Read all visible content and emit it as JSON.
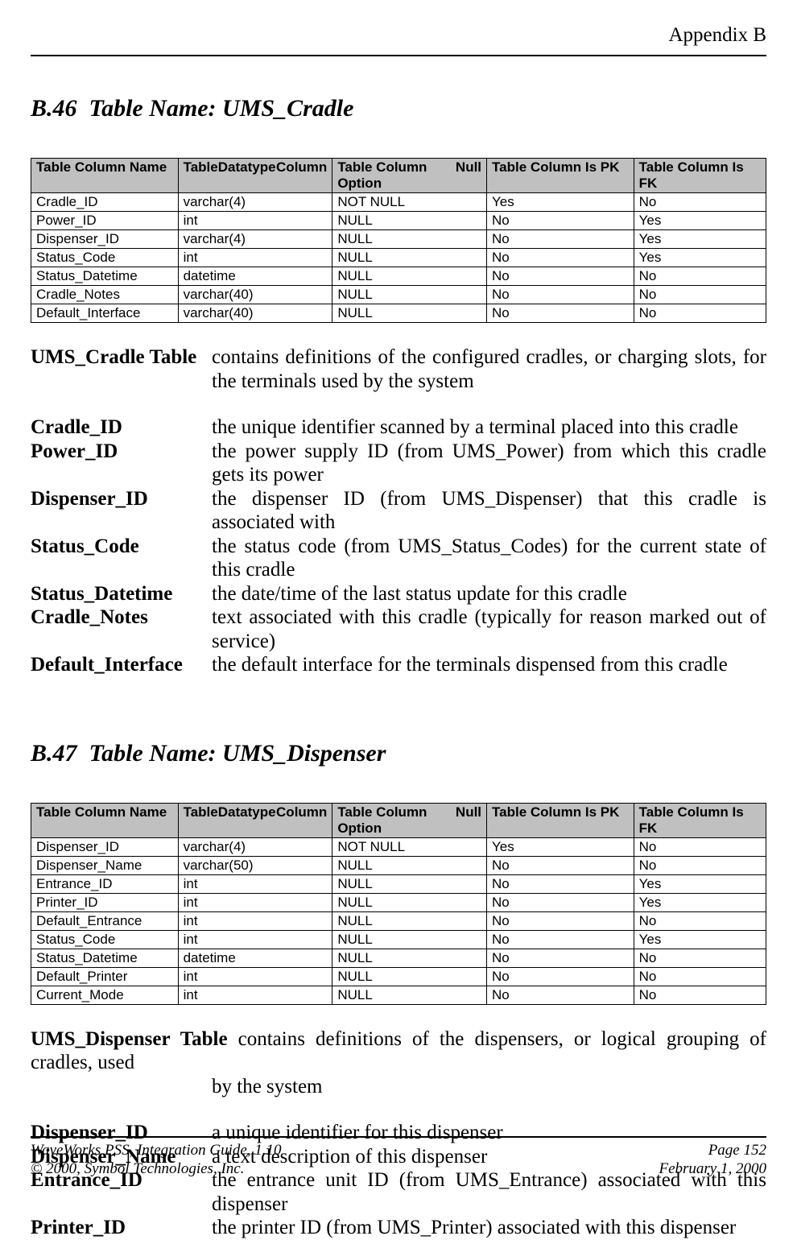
{
  "header": {
    "appendix": "Appendix B"
  },
  "section1": {
    "number": "B.46",
    "title": "Table Name: UMS_Cradle",
    "columns": [
      {
        "left": "Table Column Name",
        "right": ""
      },
      {
        "left": "Table",
        "right": "Column",
        "sub": "Datatype"
      },
      {
        "left": "Table   Column",
        "right": "Null",
        "sub": "Option"
      },
      {
        "left": "Table Column Is PK",
        "right": ""
      },
      {
        "left": "Table Column Is FK",
        "right": ""
      }
    ],
    "rows": [
      [
        "Cradle_ID",
        "varchar(4)",
        "NOT NULL",
        "Yes",
        "No"
      ],
      [
        "Power_ID",
        "int",
        "NULL",
        "No",
        "Yes"
      ],
      [
        "Dispenser_ID",
        "varchar(4)",
        "NULL",
        "No",
        "Yes"
      ],
      [
        "Status_Code",
        "int",
        "NULL",
        "No",
        "Yes"
      ],
      [
        "Status_Datetime",
        "datetime",
        "NULL",
        "No",
        "No"
      ],
      [
        "Cradle_Notes",
        "varchar(40)",
        "NULL",
        "No",
        "No"
      ],
      [
        "Default_Interface",
        "varchar(40)",
        "NULL",
        "No",
        "No"
      ]
    ],
    "defs": [
      {
        "term": "UMS_Cradle Table",
        "desc": "contains definitions of the configured cradles, or charging slots, for the terminals used by the system"
      },
      {
        "spacer": true
      },
      {
        "term": "Cradle_ID",
        "desc": "the unique identifier scanned by a terminal placed into this cradle"
      },
      {
        "term": "Power_ID",
        "desc": "the power supply ID (from UMS_Power) from which this cradle gets its power"
      },
      {
        "term": "Dispenser_ID",
        "desc": "the dispenser ID (from UMS_Dispenser) that this cradle is associated with"
      },
      {
        "term": "Status_Code",
        "desc": "the status code (from UMS_Status_Codes) for the current state of this cradle"
      },
      {
        "term": "Status_Datetime",
        "desc": "the date/time of the last status update for this cradle"
      },
      {
        "term": "Cradle_Notes",
        "desc": "text associated with this cradle (typically for reason marked out of service)"
      },
      {
        "term": "Default_Interface",
        "desc": "the default interface for the terminals dispensed from this cradle"
      }
    ]
  },
  "section2": {
    "number": "B.47",
    "title": "Table Name: UMS_Dispenser",
    "columns": [
      {
        "left": "Table Column Name",
        "right": ""
      },
      {
        "left": "Table",
        "right": "Column",
        "sub": "Datatype"
      },
      {
        "left": "Table   Column",
        "right": "Null",
        "sub": "Option"
      },
      {
        "left": "Table Column Is PK",
        "right": ""
      },
      {
        "left": "Table Column Is FK",
        "right": ""
      }
    ],
    "rows": [
      [
        "Dispenser_ID",
        "varchar(4)",
        "NOT NULL",
        "Yes",
        "No"
      ],
      [
        "Dispenser_Name",
        "varchar(50)",
        "NULL",
        "No",
        "No"
      ],
      [
        "Entrance_ID",
        "int",
        "NULL",
        "No",
        "Yes"
      ],
      [
        "Printer_ID",
        "int",
        "NULL",
        "No",
        "Yes"
      ],
      [
        "Default_Entrance",
        "int",
        "NULL",
        "No",
        "No"
      ],
      [
        "Status_Code",
        "int",
        "NULL",
        "No",
        "Yes"
      ],
      [
        "Status_Datetime",
        "datetime",
        "NULL",
        "No",
        "No"
      ],
      [
        "Default_Printer",
        "int",
        "NULL",
        "No",
        "No"
      ],
      [
        "Current_Mode",
        "int",
        "NULL",
        "No",
        "No"
      ]
    ],
    "defs": [
      {
        "term": "UMS_Dispenser Table",
        "desc": "contains definitions of the dispensers, or logical grouping of cradles, used by the system",
        "wrapterm": true
      },
      {
        "spacer": true
      },
      {
        "term": "Dispenser_ID",
        "desc": "a unique identifier for this dispenser"
      },
      {
        "term": "Dispenser_Name",
        "desc": "a text description of this dispenser"
      },
      {
        "term": "Entrance_ID",
        "desc": "the entrance unit ID (from UMS_Entrance) associated with this dispenser"
      },
      {
        "term": "Printer_ID",
        "desc": "the printer ID (from UMS_Printer) associated with this dispenser"
      }
    ]
  },
  "footer": {
    "left1": "WaveWorks PSS, Integration Guide, 1.10",
    "right1": "Page 152",
    "left2": "© 2000, Symbol Technologies, Inc.",
    "right2": "February 1, 2000"
  }
}
